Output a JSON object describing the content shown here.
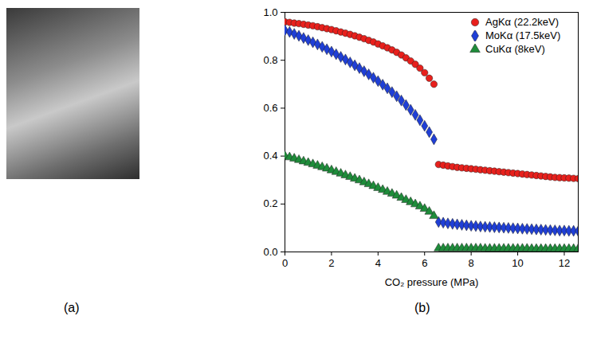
{
  "panels": {
    "a": {
      "label": "(a)"
    },
    "b": {
      "label": "(b)"
    }
  },
  "chart_data": {
    "type": "scatter",
    "xlabel": "CO₂ pressure (MPa)",
    "xlim": [
      0,
      12.6
    ],
    "xticks": [
      0,
      2,
      4,
      6,
      8,
      10,
      12
    ],
    "ylim": [
      0,
      1.0
    ],
    "yticks": [
      {
        "value": 0,
        "label": "0.0"
      },
      {
        "value": 0.2,
        "label": "0.2"
      },
      {
        "value": 0.4,
        "label": "0.4"
      },
      {
        "value": 0.6,
        "label": "0.6"
      },
      {
        "value": 0.8,
        "label": "0.8"
      },
      {
        "value": 1.0,
        "label": "1.0"
      }
    ],
    "grid": false,
    "legend": "top-right",
    "x": [
      0,
      0.2,
      0.4,
      0.6,
      0.8,
      1.0,
      1.2,
      1.4,
      1.6,
      1.8,
      2.0,
      2.2,
      2.4,
      2.6,
      2.8,
      3.0,
      3.2,
      3.4,
      3.6,
      3.8,
      4.0,
      4.2,
      4.4,
      4.6,
      4.8,
      5.0,
      5.2,
      5.4,
      5.6,
      5.8,
      6.0,
      6.2,
      6.4,
      6.6,
      6.8,
      7.0,
      7.2,
      7.4,
      7.6,
      7.8,
      8.0,
      8.2,
      8.4,
      8.6,
      8.8,
      9.0,
      9.2,
      9.4,
      9.6,
      9.8,
      10.0,
      10.2,
      10.4,
      10.6,
      10.8,
      11.0,
      11.2,
      11.4,
      11.6,
      11.8,
      12.0,
      12.2,
      12.4,
      12.6
    ],
    "series": [
      {
        "name": "AgKα (22.2keV)",
        "color": "#e8201c",
        "marker": "circle",
        "values": [
          0.96,
          0.958,
          0.955,
          0.953,
          0.95,
          0.947,
          0.944,
          0.94,
          0.936,
          0.932,
          0.928,
          0.923,
          0.918,
          0.913,
          0.908,
          0.902,
          0.896,
          0.89,
          0.883,
          0.876,
          0.868,
          0.86,
          0.852,
          0.843,
          0.833,
          0.822,
          0.81,
          0.797,
          0.783,
          0.767,
          0.748,
          0.725,
          0.7,
          0.365,
          0.362,
          0.359,
          0.356,
          0.353,
          0.351,
          0.349,
          0.347,
          0.345,
          0.343,
          0.341,
          0.339,
          0.337,
          0.335,
          0.333,
          0.331,
          0.329,
          0.327,
          0.325,
          0.323,
          0.321,
          0.319,
          0.317,
          0.315,
          0.313,
          0.311,
          0.31,
          0.309,
          0.308,
          0.307,
          0.306
        ]
      },
      {
        "name": "MoKα (17.5keV)",
        "color": "#1f3fd6",
        "marker": "diamond",
        "values": [
          0.925,
          0.918,
          0.91,
          0.902,
          0.893,
          0.884,
          0.875,
          0.866,
          0.856,
          0.846,
          0.836,
          0.825,
          0.814,
          0.803,
          0.791,
          0.779,
          0.767,
          0.754,
          0.741,
          0.727,
          0.713,
          0.698,
          0.683,
          0.667,
          0.65,
          0.632,
          0.613,
          0.593,
          0.572,
          0.55,
          0.526,
          0.5,
          0.47,
          0.125,
          0.122,
          0.119,
          0.117,
          0.115,
          0.113,
          0.111,
          0.109,
          0.108,
          0.106,
          0.105,
          0.104,
          0.103,
          0.102,
          0.101,
          0.1,
          0.099,
          0.098,
          0.097,
          0.096,
          0.095,
          0.094,
          0.093,
          0.092,
          0.091,
          0.09,
          0.089,
          0.089,
          0.088,
          0.088,
          0.087
        ]
      },
      {
        "name": "CuKα (8keV)",
        "color": "#1e8c3a",
        "marker": "triangle",
        "values": [
          0.4,
          0.395,
          0.39,
          0.384,
          0.378,
          0.372,
          0.366,
          0.36,
          0.354,
          0.348,
          0.341,
          0.334,
          0.327,
          0.32,
          0.313,
          0.306,
          0.299,
          0.291,
          0.283,
          0.275,
          0.267,
          0.259,
          0.251,
          0.243,
          0.235,
          0.226,
          0.217,
          0.208,
          0.199,
          0.19,
          0.18,
          0.168,
          0.15,
          0.015,
          0.015,
          0.015,
          0.015,
          0.015,
          0.015,
          0.015,
          0.015,
          0.015,
          0.015,
          0.014,
          0.014,
          0.014,
          0.014,
          0.014,
          0.014,
          0.014,
          0.014,
          0.014,
          0.014,
          0.013,
          0.013,
          0.013,
          0.013,
          0.013,
          0.013,
          0.013,
          0.013,
          0.013,
          0.013,
          0.013
        ]
      }
    ]
  }
}
